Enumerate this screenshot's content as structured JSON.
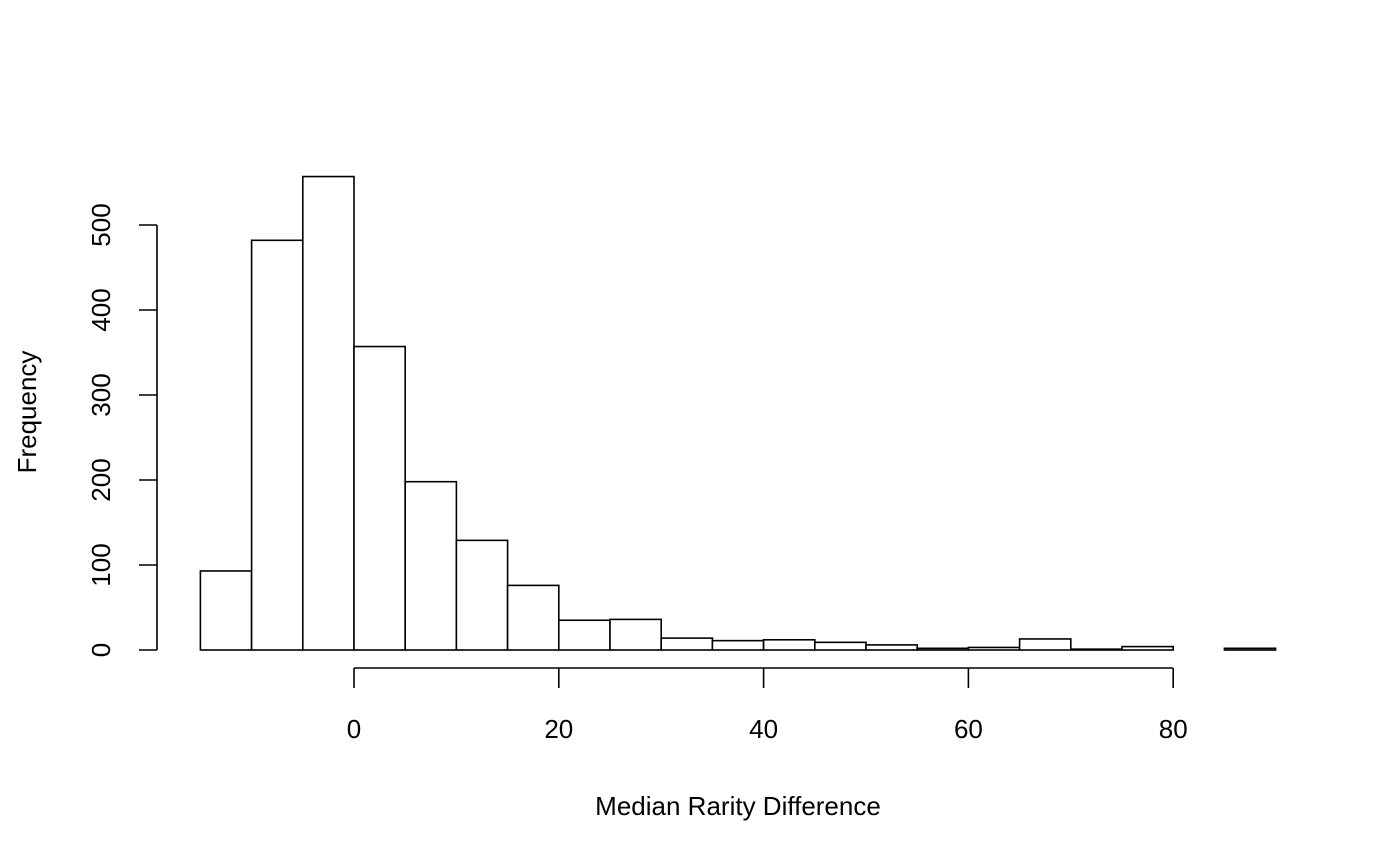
{
  "chart_data": {
    "type": "bar",
    "subtype": "histogram",
    "title": "",
    "xlabel": "Median Rarity Difference",
    "ylabel": "Frequency",
    "bins": [
      {
        "x0": -15,
        "x1": -10,
        "count": 93
      },
      {
        "x0": -10,
        "x1": -5,
        "count": 482
      },
      {
        "x0": -5,
        "x1": 0,
        "count": 557
      },
      {
        "x0": 0,
        "x1": 5,
        "count": 357
      },
      {
        "x0": 5,
        "x1": 10,
        "count": 198
      },
      {
        "x0": 10,
        "x1": 15,
        "count": 129
      },
      {
        "x0": 15,
        "x1": 20,
        "count": 76
      },
      {
        "x0": 20,
        "x1": 25,
        "count": 35
      },
      {
        "x0": 25,
        "x1": 30,
        "count": 36
      },
      {
        "x0": 30,
        "x1": 35,
        "count": 14
      },
      {
        "x0": 35,
        "x1": 40,
        "count": 11
      },
      {
        "x0": 40,
        "x1": 45,
        "count": 12
      },
      {
        "x0": 45,
        "x1": 50,
        "count": 9
      },
      {
        "x0": 50,
        "x1": 55,
        "count": 6
      },
      {
        "x0": 55,
        "x1": 60,
        "count": 2
      },
      {
        "x0": 60,
        "x1": 65,
        "count": 3
      },
      {
        "x0": 65,
        "x1": 70,
        "count": 13
      },
      {
        "x0": 70,
        "x1": 75,
        "count": 1
      },
      {
        "x0": 75,
        "x1": 80,
        "count": 4
      },
      {
        "x0": 80,
        "x1": 85,
        "count": 0
      },
      {
        "x0": 85,
        "x1": 90,
        "count": 2
      }
    ],
    "xlim": [
      -15,
      90
    ],
    "ylim": [
      0,
      557
    ],
    "xticks": [
      "0",
      "20",
      "40",
      "60",
      "80"
    ],
    "yticks": [
      "0",
      "100",
      "200",
      "300",
      "400",
      "500"
    ],
    "grid": false,
    "legend": "none",
    "bar_fill": "#ffffff",
    "bar_stroke": "#000000"
  }
}
